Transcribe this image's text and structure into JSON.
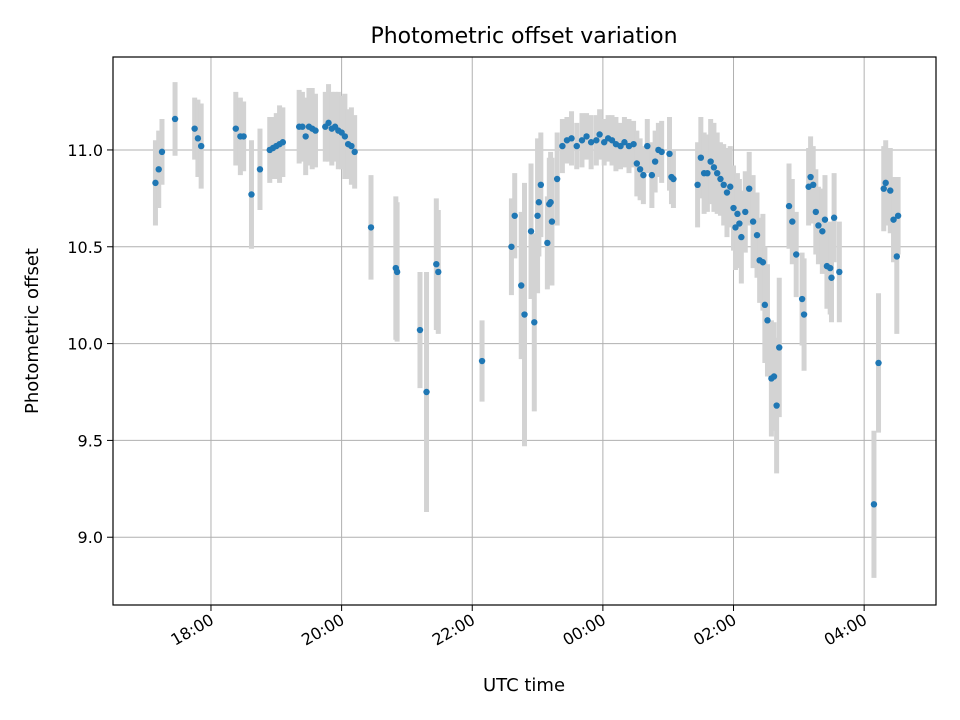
{
  "chart_data": {
    "type": "scatter",
    "title": "Photometric offset variation",
    "xlabel": "UTC time",
    "ylabel": "Photometric offset",
    "x_unit": "hours since 00:00 UTC",
    "xlim": [
      -7.5,
      5.1
    ],
    "ylim": [
      8.65,
      11.48
    ],
    "x_ticks": [
      {
        "value": -6,
        "label": "18:00"
      },
      {
        "value": -4,
        "label": "20:00"
      },
      {
        "value": -2,
        "label": "22:00"
      },
      {
        "value": 0,
        "label": "00:00"
      },
      {
        "value": 2,
        "label": "02:00"
      },
      {
        "value": 4,
        "label": "04:00"
      }
    ],
    "y_ticks": [
      {
        "value": 9.0,
        "label": "9.0"
      },
      {
        "value": 9.5,
        "label": "9.5"
      },
      {
        "value": 10.0,
        "label": "10.0"
      },
      {
        "value": 10.5,
        "label": "10.5"
      },
      {
        "value": 11.0,
        "label": "11.0"
      }
    ],
    "grid": true,
    "point_color": "#1f77b4",
    "errorbar_color": "#d3d3d3",
    "series": [
      {
        "name": "offset",
        "points": [
          [
            -6.85,
            10.83,
            0.22
          ],
          [
            -6.8,
            10.9,
            0.2
          ],
          [
            -6.75,
            10.99,
            0.17
          ],
          [
            -6.55,
            11.16,
            0.19
          ],
          [
            -6.25,
            11.11,
            0.16
          ],
          [
            -6.2,
            11.06,
            0.2
          ],
          [
            -6.15,
            11.02,
            0.22
          ],
          [
            -5.62,
            11.11,
            0.19
          ],
          [
            -5.55,
            11.07,
            0.2
          ],
          [
            -5.5,
            11.07,
            0.18
          ],
          [
            -5.38,
            10.77,
            0.28
          ],
          [
            -5.25,
            10.9,
            0.21
          ],
          [
            -5.1,
            11.0,
            0.17
          ],
          [
            -5.05,
            11.01,
            0.16
          ],
          [
            -5.0,
            11.02,
            0.17
          ],
          [
            -4.95,
            11.03,
            0.2
          ],
          [
            -4.9,
            11.04,
            0.18
          ],
          [
            -4.65,
            11.12,
            0.19
          ],
          [
            -4.6,
            11.12,
            0.18
          ],
          [
            -4.55,
            11.07,
            0.2
          ],
          [
            -4.5,
            11.12,
            0.2
          ],
          [
            -4.45,
            11.11,
            0.21
          ],
          [
            -4.4,
            11.1,
            0.19
          ],
          [
            -4.25,
            11.12,
            0.18
          ],
          [
            -4.2,
            11.14,
            0.2
          ],
          [
            -4.15,
            11.11,
            0.19
          ],
          [
            -4.1,
            11.12,
            0.18
          ],
          [
            -4.05,
            11.1,
            0.2
          ],
          [
            -4.0,
            11.09,
            0.19
          ],
          [
            -3.95,
            11.07,
            0.22
          ],
          [
            -3.9,
            11.03,
            0.18
          ],
          [
            -3.85,
            11.02,
            0.2
          ],
          [
            -3.8,
            10.99,
            0.19
          ],
          [
            -3.55,
            10.6,
            0.27
          ],
          [
            -3.17,
            10.39,
            0.37
          ],
          [
            -3.15,
            10.37,
            0.36
          ],
          [
            -2.8,
            10.07,
            0.3
          ],
          [
            -2.7,
            9.75,
            0.62
          ],
          [
            -2.55,
            10.41,
            0.34
          ],
          [
            -2.52,
            10.37,
            0.32
          ],
          [
            -1.85,
            9.91,
            0.21
          ],
          [
            -1.4,
            10.5,
            0.25
          ],
          [
            -1.35,
            10.66,
            0.22
          ],
          [
            -1.25,
            10.3,
            0.38
          ],
          [
            -1.2,
            10.15,
            0.68
          ],
          [
            -1.1,
            10.58,
            0.35
          ],
          [
            -1.05,
            10.11,
            0.46
          ],
          [
            -1.0,
            10.66,
            0.4
          ],
          [
            -0.98,
            10.73,
            0.28
          ],
          [
            -0.95,
            10.82,
            0.27
          ],
          [
            -0.85,
            10.52,
            0.24
          ],
          [
            -0.82,
            10.72,
            0.24
          ],
          [
            -0.8,
            10.73,
            0.26
          ],
          [
            -0.78,
            10.63,
            0.33
          ],
          [
            -0.7,
            10.85,
            0.24
          ],
          [
            -0.62,
            11.02,
            0.14
          ],
          [
            -0.55,
            11.05,
            0.12
          ],
          [
            -0.48,
            11.06,
            0.14
          ],
          [
            -0.4,
            11.02,
            0.12
          ],
          [
            -0.32,
            11.05,
            0.14
          ],
          [
            -0.25,
            11.07,
            0.12
          ],
          [
            -0.18,
            11.04,
            0.14
          ],
          [
            -0.1,
            11.05,
            0.13
          ],
          [
            -0.05,
            11.08,
            0.13
          ],
          [
            0.02,
            11.04,
            0.12
          ],
          [
            0.08,
            11.06,
            0.12
          ],
          [
            0.14,
            11.05,
            0.13
          ],
          [
            0.2,
            11.03,
            0.14
          ],
          [
            0.27,
            11.02,
            0.12
          ],
          [
            0.33,
            11.04,
            0.13
          ],
          [
            0.4,
            11.02,
            0.14
          ],
          [
            0.47,
            11.03,
            0.12
          ],
          [
            0.52,
            10.93,
            0.17
          ],
          [
            0.57,
            10.9,
            0.16
          ],
          [
            0.62,
            10.87,
            0.15
          ],
          [
            0.68,
            11.02,
            0.14
          ],
          [
            0.75,
            10.87,
            0.17
          ],
          [
            0.8,
            10.94,
            0.16
          ],
          [
            0.85,
            11.0,
            0.14
          ],
          [
            0.9,
            10.99,
            0.16
          ],
          [
            1.02,
            10.98,
            0.19
          ],
          [
            1.05,
            10.86,
            0.14
          ],
          [
            1.08,
            10.85,
            0.15
          ],
          [
            1.45,
            10.82,
            0.22
          ],
          [
            1.5,
            10.96,
            0.21
          ],
          [
            1.55,
            10.88,
            0.21
          ],
          [
            1.6,
            10.88,
            0.2
          ],
          [
            1.65,
            10.94,
            0.22
          ],
          [
            1.7,
            10.91,
            0.23
          ],
          [
            1.75,
            10.88,
            0.21
          ],
          [
            1.8,
            10.85,
            0.19
          ],
          [
            1.85,
            10.82,
            0.21
          ],
          [
            1.9,
            10.78,
            0.23
          ],
          [
            1.95,
            10.81,
            0.21
          ],
          [
            2.0,
            10.7,
            0.22
          ],
          [
            2.03,
            10.6,
            0.22
          ],
          [
            2.06,
            10.67,
            0.21
          ],
          [
            2.09,
            10.62,
            0.23
          ],
          [
            2.12,
            10.55,
            0.24
          ],
          [
            2.18,
            10.68,
            0.21
          ],
          [
            2.24,
            10.8,
            0.19
          ],
          [
            2.3,
            10.63,
            0.24
          ],
          [
            2.36,
            10.56,
            0.22
          ],
          [
            2.4,
            10.43,
            0.22
          ],
          [
            2.45,
            10.42,
            0.25
          ],
          [
            2.48,
            10.2,
            0.3
          ],
          [
            2.52,
            10.12,
            0.29
          ],
          [
            2.58,
            9.82,
            0.3
          ],
          [
            2.62,
            9.83,
            0.28
          ],
          [
            2.66,
            9.68,
            0.35
          ],
          [
            2.7,
            9.98,
            0.36
          ],
          [
            2.85,
            10.71,
            0.22
          ],
          [
            2.9,
            10.63,
            0.22
          ],
          [
            2.96,
            10.46,
            0.22
          ],
          [
            3.05,
            10.23,
            0.24
          ],
          [
            3.08,
            10.15,
            0.29
          ],
          [
            3.15,
            10.81,
            0.2
          ],
          [
            3.18,
            10.86,
            0.21
          ],
          [
            3.22,
            10.82,
            0.2
          ],
          [
            3.26,
            10.68,
            0.22
          ],
          [
            3.3,
            10.61,
            0.2
          ],
          [
            3.36,
            10.58,
            0.22
          ],
          [
            3.4,
            10.64,
            0.23
          ],
          [
            3.43,
            10.4,
            0.22
          ],
          [
            3.48,
            10.39,
            0.24
          ],
          [
            3.5,
            10.34,
            0.23
          ],
          [
            3.54,
            10.65,
            0.23
          ],
          [
            3.62,
            10.37,
            0.26
          ],
          [
            4.15,
            9.17,
            0.38
          ],
          [
            4.22,
            9.9,
            0.36
          ],
          [
            4.3,
            10.8,
            0.22
          ],
          [
            4.33,
            10.83,
            0.22
          ],
          [
            4.4,
            10.79,
            0.22
          ],
          [
            4.45,
            10.64,
            0.22
          ],
          [
            4.5,
            10.45,
            0.4
          ],
          [
            4.52,
            10.66,
            0.2
          ]
        ]
      }
    ]
  }
}
